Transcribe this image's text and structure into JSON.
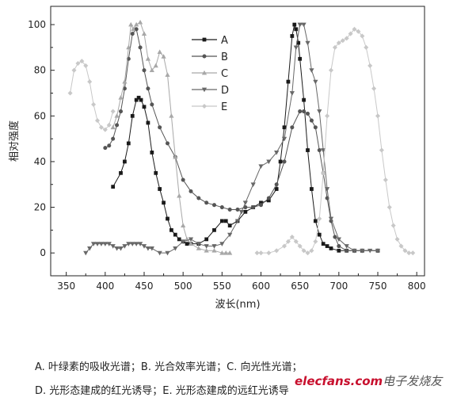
{
  "chart_data": {
    "type": "line",
    "title": "",
    "xlabel": "波长(nm)",
    "ylabel": "相对强度",
    "xlim": [
      330,
      810
    ],
    "ylim": [
      -10,
      108
    ],
    "xticks": [
      350,
      400,
      450,
      500,
      550,
      600,
      650,
      700,
      750,
      800
    ],
    "yticks": [
      0,
      20,
      40,
      60,
      80,
      100
    ],
    "grid": false,
    "legend_position": "top-center",
    "series": [
      {
        "name": "A",
        "color": "#1a1a1a",
        "marker": "square",
        "x": [
          410,
          420,
          425,
          430,
          435,
          440,
          443,
          446,
          450,
          455,
          460,
          465,
          470,
          475,
          480,
          485,
          490,
          495,
          500,
          505,
          510,
          520,
          530,
          540,
          550,
          555,
          560,
          570,
          580,
          590,
          600,
          610,
          620,
          625,
          630,
          635,
          640,
          643,
          645,
          648,
          650,
          655,
          660,
          665,
          670,
          675,
          680,
          685,
          690,
          700,
          710,
          720,
          730,
          750
        ],
        "y": [
          29,
          35,
          40,
          48,
          60,
          67,
          68,
          67,
          64,
          57,
          44,
          35,
          28,
          22,
          15,
          10,
          8,
          6,
          5,
          4,
          4,
          4,
          6,
          10,
          14,
          14,
          12,
          14,
          18,
          20,
          22,
          23,
          28,
          40,
          55,
          75,
          95,
          100,
          98,
          92,
          85,
          67,
          45,
          28,
          14,
          8,
          4,
          3,
          2,
          1,
          1,
          1,
          1,
          1
        ]
      },
      {
        "name": "B",
        "color": "#555555",
        "marker": "circle",
        "x": [
          400,
          405,
          410,
          415,
          420,
          425,
          430,
          435,
          440,
          445,
          450,
          455,
          460,
          470,
          480,
          490,
          500,
          510,
          520,
          530,
          540,
          550,
          560,
          570,
          580,
          590,
          600,
          610,
          620,
          630,
          640,
          650,
          655,
          660,
          665,
          670,
          675,
          680,
          685,
          690,
          695,
          700,
          710,
          720,
          730,
          750
        ],
        "y": [
          46,
          47,
          50,
          56,
          62,
          72,
          85,
          96,
          98,
          90,
          80,
          72,
          65,
          55,
          48,
          42,
          32,
          27,
          24,
          22,
          21,
          20,
          19,
          19,
          20,
          20,
          21,
          24,
          30,
          40,
          55,
          62,
          62,
          61,
          58,
          55,
          45,
          35,
          24,
          14,
          7,
          3,
          1,
          1,
          1,
          1
        ]
      },
      {
        "name": "C",
        "color": "#a8a8a8",
        "marker": "triangle-up",
        "x": [
          410,
          415,
          420,
          425,
          430,
          433,
          436,
          440,
          445,
          450,
          455,
          460,
          465,
          470,
          475,
          480,
          485,
          490,
          495,
          500,
          505,
          510,
          520,
          530,
          540,
          550,
          555,
          560
        ],
        "y": [
          55,
          60,
          68,
          75,
          90,
          100,
          98,
          100,
          101,
          96,
          85,
          80,
          82,
          88,
          86,
          78,
          60,
          42,
          25,
          12,
          6,
          4,
          2,
          1,
          1,
          0,
          0,
          0
        ]
      },
      {
        "name": "D",
        "color": "#686868",
        "marker": "triangle-down",
        "x": [
          375,
          380,
          385,
          390,
          395,
          400,
          405,
          410,
          415,
          420,
          425,
          430,
          435,
          440,
          445,
          450,
          455,
          460,
          470,
          480,
          490,
          500,
          510,
          520,
          530,
          540,
          550,
          560,
          570,
          575,
          580,
          590,
          600,
          610,
          620,
          630,
          640,
          645,
          650,
          655,
          660,
          665,
          670,
          675,
          680,
          685,
          690,
          700,
          710,
          720,
          730,
          740,
          750
        ],
        "y": [
          0,
          2,
          4,
          4,
          4,
          4,
          4,
          3,
          2,
          2,
          3,
          4,
          4,
          4,
          4,
          3,
          2,
          2,
          0,
          0,
          2,
          5,
          6,
          4,
          3,
          3,
          4,
          8,
          14,
          18,
          22,
          30,
          38,
          40,
          44,
          50,
          70,
          90,
          100,
          100,
          92,
          80,
          75,
          62,
          45,
          28,
          15,
          6,
          3,
          1,
          1,
          1,
          1
        ]
      },
      {
        "name": "E",
        "color": "#c8c8c8",
        "marker": "diamond",
        "x": [
          355,
          360,
          365,
          370,
          375,
          380,
          385,
          390,
          395,
          400,
          405,
          410,
          595,
          600,
          610,
          620,
          630,
          635,
          640,
          645,
          650,
          655,
          660,
          665,
          670,
          675,
          680,
          685,
          690,
          695,
          700,
          705,
          710,
          715,
          720,
          725,
          730,
          735,
          740,
          745,
          750,
          755,
          760,
          765,
          770,
          775,
          780,
          785,
          790,
          795
        ],
        "y": [
          70,
          80,
          83,
          84,
          82,
          75,
          65,
          58,
          55,
          54,
          56,
          62,
          0,
          0,
          0,
          1,
          3,
          5,
          7,
          5,
          3,
          1,
          0,
          1,
          5,
          15,
          35,
          60,
          80,
          90,
          92,
          93,
          94,
          96,
          98,
          97,
          95,
          90,
          82,
          72,
          60,
          45,
          32,
          20,
          12,
          6,
          3,
          1,
          0,
          0
        ]
      }
    ]
  },
  "captions": {
    "line1": "A. 叶绿素的吸收光谱；B. 光合效率光谱；C. 向光性光谱；",
    "line2": "D. 光形态建成的红光诱导；E. 光形态建成的远红光诱导"
  },
  "watermark": {
    "brand": "elecfans.com",
    "suffix": "电子发烧友"
  }
}
